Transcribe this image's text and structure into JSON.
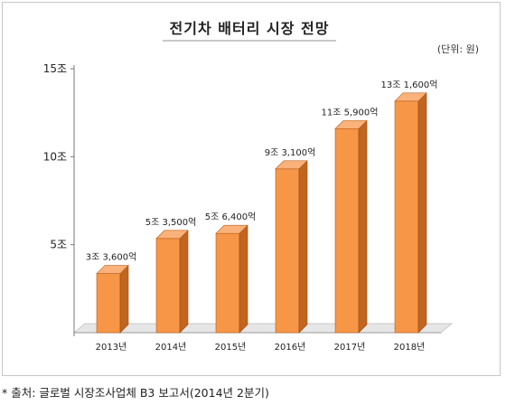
{
  "title": "전기차 배터리 시장 전망",
  "unit_note": "(단위: 원)",
  "source_note": "* 출처: 글로벌 시장조사업체 B3 보고서(2014년 2분기)",
  "colors": {
    "bar_front": "#f79646",
    "bar_side": "#c1651f",
    "bar_top": "#fbb27a",
    "floor": "#e6e6e6"
  },
  "chart_data": {
    "type": "bar",
    "categories": [
      "2013년",
      "2014년",
      "2015년",
      "2016년",
      "2017년",
      "2018년"
    ],
    "values": [
      3.36,
      5.35,
      5.64,
      9.31,
      11.59,
      13.16
    ],
    "data_labels": [
      "3조 3,600억",
      "5조 3,500억",
      "5조 6,400억",
      "9조 3,100억",
      "11조 5,900억",
      "13조 1,600억"
    ],
    "y_ticks": [
      {
        "value": 5,
        "label": "5조"
      },
      {
        "value": 10,
        "label": "10조"
      },
      {
        "value": 15,
        "label": "15조"
      }
    ],
    "ylim": [
      0,
      15
    ],
    "grid": false,
    "legend": "none"
  }
}
